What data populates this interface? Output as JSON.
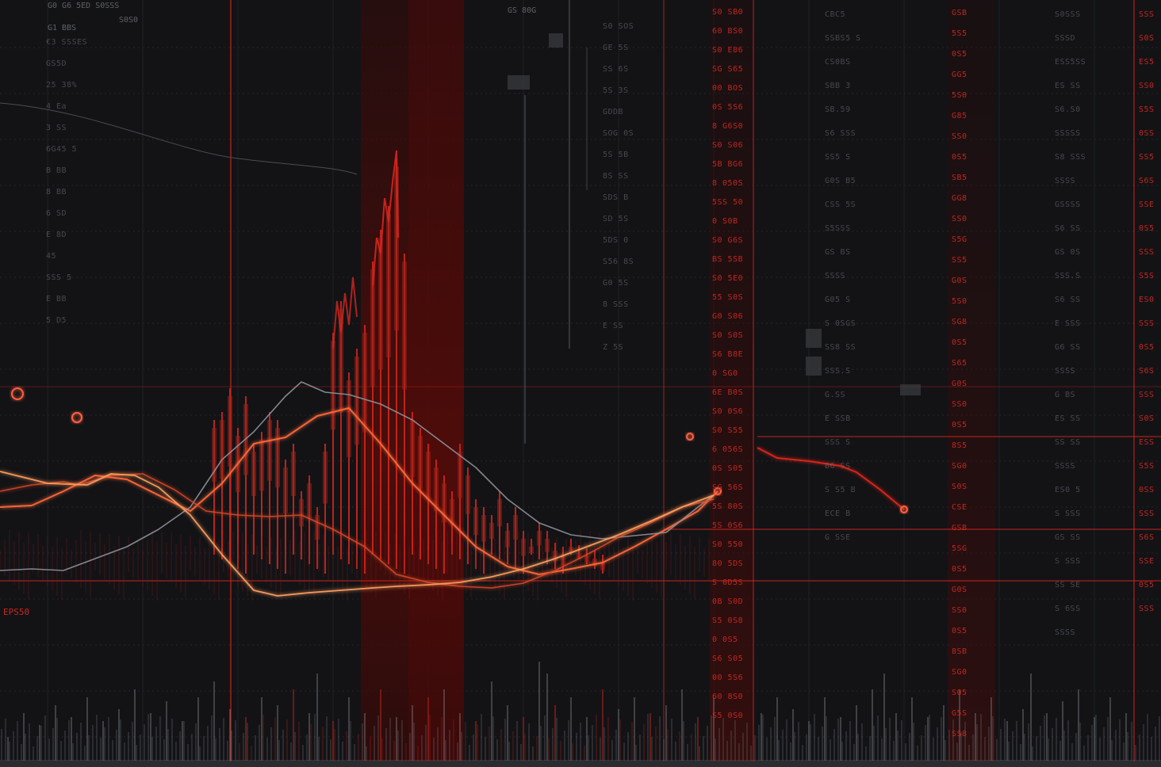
{
  "colors": {
    "background": "#131316",
    "accent_red": "#d6271e",
    "bright_red": "#ff5a3c",
    "band_red": "#6a0c0a",
    "grey_line": "#8a8f96",
    "text_grey": "#6f7379"
  },
  "left_axis_labels": [
    "€3 SSSES",
    "GS5D",
    "25 38%",
    "4 Ea",
    "3 SS",
    "6G45 5",
    "B BB",
    "8 BB",
    "6 SD",
    "E 8D",
    "45",
    "SSS 5",
    "E BB",
    "5 D5"
  ],
  "top_labels": [
    "G0 G6 5ED S0SSS",
    "G1 BBS",
    "S0S0",
    "GS 80G"
  ],
  "annotation_label": "EPS50",
  "mid_column_labels": [
    "S0 SOS",
    "GE 5S",
    "SS 6S",
    "5S 3S",
    "GDDB",
    "SOG 0S",
    "5S 5B",
    "8S SS",
    "SDS B",
    "SD 5S",
    "5DS 0",
    "S56 8S",
    "G0 5S",
    "8 SSS",
    "E SS",
    "Z 5S"
  ],
  "red_column_a": [
    "S0 SB0",
    "60 BS0",
    "S0 E86",
    "SG S65",
    "00 BOS",
    "0S 5S6",
    "8 G6S0",
    "S0 S06",
    "5B BG6",
    "8 050S",
    "5SS 50",
    "0 S0B",
    "S0 G6S",
    "BS 5SB",
    "S0 5E0",
    "55 S0S",
    "G0 S06",
    "S0 S0S",
    "S6 B8E",
    "0 SG0",
    "6E B0S",
    "S0 0S6",
    "S0 S55",
    "6 056S",
    "0S S05",
    "SG 56S",
    "5S 80S",
    "5S 0S6",
    "S0 550",
    "80 5DS",
    "S 0D5S",
    "0B S0D",
    "S5 0S8",
    "0 0S5",
    "S6 S05",
    "00 5S6",
    "60 8S0",
    "S5 0S0"
  ],
  "mid_right_labels": [
    "CBC5",
    "SSBS5 S",
    "CS0BS",
    "SBB 3",
    "SB.59",
    "S6 SSS",
    "SS5 S",
    "G0S B5",
    "CSS 5S",
    "S5SSS",
    "GS BS",
    "SSSS",
    "G05 S",
    "S 0SGS",
    "SS8 SS",
    "SSS.S",
    "G.SS",
    "E SSB",
    "SSS S",
    "B6 SS",
    "S S5 B",
    "ECE B",
    "G SSE"
  ],
  "red_column_b": [
    "GSB",
    "5S5",
    "0S5",
    "GG5",
    "5S0",
    "G85",
    "SS0",
    "0S5",
    "SB5",
    "GG8",
    "SS0",
    "S5G",
    "SS5",
    "G0S",
    "5S0",
    "SG8",
    "0S5",
    "S65",
    "G0S",
    "SS0",
    "0S5",
    "8S5",
    "SG0",
    "S0S",
    "CSE",
    "GSB",
    "5SG",
    "0S5",
    "G0S",
    "SS0",
    "0S5",
    "8SB",
    "SG0",
    "S05",
    "G5S",
    "SS8"
  ],
  "right_column_labels": [
    "S0SSS",
    "SSSD",
    "ESS5SS",
    "ES SS",
    "S6.S0",
    "SSSSS",
    "S8 SSS",
    "SSSS",
    "GSSSS",
    "S6 SS",
    "GS 0S",
    "SSS.S",
    "S6 SS",
    "E SSS",
    "G6 SS",
    "SSSS",
    "G BS",
    "ES SS",
    "SS SS",
    "SSSS",
    "ES0 5",
    "S SSS",
    "GS SS",
    "S SSS",
    "SS SE",
    "S 6SS",
    "SSSS"
  ],
  "far_right_red": [
    "SSS",
    "S0S",
    "ES5",
    "SS0",
    "S5S",
    "0SS",
    "SS5",
    "S6S",
    "SSE",
    "0S5",
    "SSS",
    "S5S",
    "ES0",
    "SSS",
    "0S5",
    "S6S",
    "SSS",
    "S0S",
    "ESS",
    "S5S",
    "0SS",
    "SSS",
    "S6S",
    "SSE",
    "0S5",
    "SSS"
  ],
  "chart_data": {
    "type": "line",
    "title": "",
    "xlabel": "",
    "ylabel": "",
    "grid": true,
    "series": [
      {
        "x": [
          0,
          40,
          80,
          120,
          160,
          200,
          240,
          280,
          320,
          360,
          400,
          440,
          480,
          520,
          560,
          600,
          640,
          680,
          720,
          760,
          800,
          840,
          880,
          905
        ],
        "values": [
          640,
          638,
          620,
          600,
          605,
          625,
          645,
          610,
          560,
          552,
          525,
          515,
          560,
          610,
          650,
          690,
          715,
          725,
          718,
          710,
          690,
          668,
          645,
          620
        ]
      },
      {
        "x": [
          0,
          40,
          80,
          120,
          160,
          200,
          240,
          280,
          320,
          360,
          380,
          410,
          440,
          480,
          520,
          560,
          600,
          640,
          680,
          720,
          760,
          800,
          840,
          880,
          900
        ],
        "values": [
          720,
          718,
          720,
          705,
          690,
          668,
          640,
          580,
          545,
          500,
          482,
          495,
          498,
          510,
          530,
          560,
          590,
          630,
          660,
          675,
          680,
          676,
          672,
          640,
          625
        ]
      },
      {
        "x": [
          0,
          40,
          80,
          100,
          140,
          180,
          220,
          260,
          300,
          340,
          380,
          420,
          460,
          500,
          540,
          580,
          620,
          660,
          700,
          740,
          780,
          820,
          860,
          900
        ],
        "values": [
          620,
          612,
          608,
          612,
          600,
          598,
          618,
          645,
          650,
          652,
          650,
          668,
          690,
          725,
          735,
          740,
          742,
          736,
          720,
          700,
          678,
          660,
          640,
          630
        ]
      },
      {
        "x": [
          0,
          60,
          110,
          140,
          170,
          200,
          240,
          280,
          320,
          350,
          390,
          430,
          470,
          500,
          540,
          580,
          620,
          660,
          700,
          740,
          780,
          820,
          860,
          900
        ],
        "values": [
          595,
          610,
          612,
          598,
          600,
          615,
          650,
          700,
          745,
          752,
          748,
          745,
          742,
          740,
          738,
          735,
          728,
          718,
          705,
          690,
          675,
          658,
          640,
          625
        ]
      },
      {
        "x": [
          955,
          980,
          1020,
          1060,
          1080,
          1110,
          1140
        ],
        "values": [
          565,
          578,
          582,
          588,
          596,
          618,
          643
        ]
      }
    ],
    "bars": {
      "x": [
        270,
        280,
        290,
        300,
        310,
        320,
        330,
        340,
        350,
        360,
        370,
        380,
        390,
        400,
        410,
        420,
        430,
        440,
        450,
        460,
        470,
        480,
        490,
        500,
        510,
        520,
        530,
        540,
        550,
        560,
        570,
        580,
        590,
        600,
        610,
        620,
        630,
        640,
        650,
        660,
        670,
        680,
        690,
        700,
        710,
        720,
        730,
        740,
        750,
        760
      ],
      "values": [
        530,
        520,
        490,
        540,
        500,
        560,
        545,
        520,
        530,
        580,
        560,
        620,
        600,
        640,
        560,
        420,
        380,
        470,
        440,
        410,
        330,
        290,
        260,
        200,
        320,
        520,
        540,
        560,
        580,
        600,
        620,
        560,
        590,
        630,
        640,
        650,
        620,
        660,
        640,
        670,
        680,
        660,
        670,
        685,
        690,
        680,
        688,
        692,
        695,
        700
      ]
    },
    "volume": {
      "x": [
        10,
        30,
        50,
        70,
        90,
        110,
        130,
        150,
        170,
        190,
        210,
        230,
        250,
        270,
        290,
        310,
        330,
        350,
        370,
        390,
        400,
        420,
        440,
        460,
        480,
        500,
        520,
        540,
        560,
        580,
        600,
        620,
        640,
        660,
        680,
        690,
        700,
        720,
        740,
        760,
        780,
        800,
        820,
        840,
        860,
        880,
        900,
        960,
        980,
        1000,
        1020,
        1040,
        1060,
        1080,
        1100,
        1115,
        1130,
        1150,
        1170,
        1190,
        1210,
        1230,
        1250,
        1270,
        1290,
        1300,
        1320,
        1340,
        1360,
        1380,
        1400,
        1420
      ],
      "values": [
        930,
        900,
        915,
        890,
        905,
        880,
        910,
        895,
        870,
        900,
        885,
        910,
        880,
        860,
        895,
        905,
        880,
        890,
        870,
        900,
        850,
        910,
        880,
        900,
        870,
        905,
        890,
        880,
        870,
        900,
        910,
        860,
        890,
        905,
        835,
        850,
        890,
        880,
        905,
        870,
        895,
        880,
        900,
        890,
        870,
        905,
        880,
        900,
        880,
        895,
        910,
        880,
        905,
        890,
        870,
        850,
        900,
        880,
        905,
        890,
        870,
        900,
        880,
        910,
        895,
        850,
        900,
        885,
        870,
        905,
        880,
        900
      ]
    }
  }
}
